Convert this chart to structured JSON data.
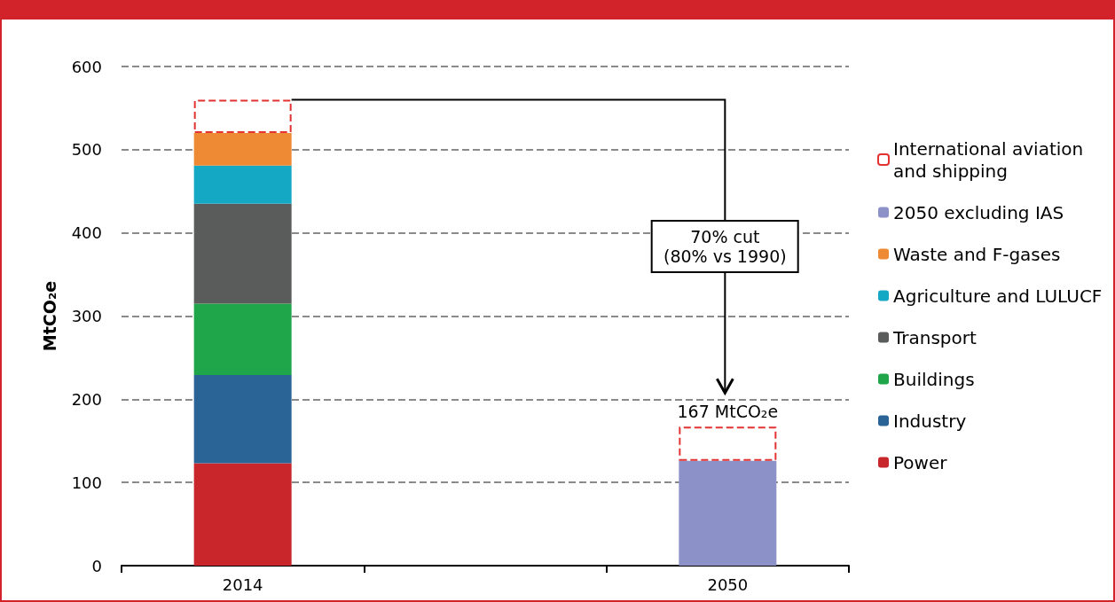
{
  "chart_data": {
    "type": "bar",
    "stacked": true,
    "categories": [
      "2014",
      null,
      "2050"
    ],
    "ylabel": "MtCO₂e",
    "ylim": [
      0,
      600
    ],
    "yticks": [
      0,
      100,
      200,
      300,
      400,
      500,
      600
    ],
    "grid": "y",
    "legend": "right",
    "series": [
      {
        "name": "Power",
        "color": "#c8262a",
        "values": [
          123,
          null,
          null
        ]
      },
      {
        "name": "Industry",
        "color": "#2a6496",
        "values": [
          106,
          null,
          null
        ]
      },
      {
        "name": "Buildings",
        "color": "#1fa64a",
        "values": [
          86,
          null,
          null
        ]
      },
      {
        "name": "Transport",
        "color": "#5a5c5c",
        "values": [
          120,
          null,
          null
        ]
      },
      {
        "name": "Agriculture and LULUCF",
        "color": "#15a8c4",
        "values": [
          46,
          null,
          null
        ]
      },
      {
        "name": "Waste and F-gases",
        "color": "#ee8a33",
        "values": [
          39,
          null,
          null
        ]
      },
      {
        "name": "2050 excluding IAS",
        "color": "#8c91c8",
        "values": [
          null,
          null,
          126
        ]
      },
      {
        "name": "International aviation and shipping",
        "color": "#e23232",
        "line_style": "dashed",
        "values": [
          40,
          null,
          41
        ]
      }
    ],
    "annotations": [
      {
        "text": "167 MtCO₂e",
        "x": "2050",
        "y": 167
      },
      "70% cut\n(80% vs 1990)"
    ]
  }
}
